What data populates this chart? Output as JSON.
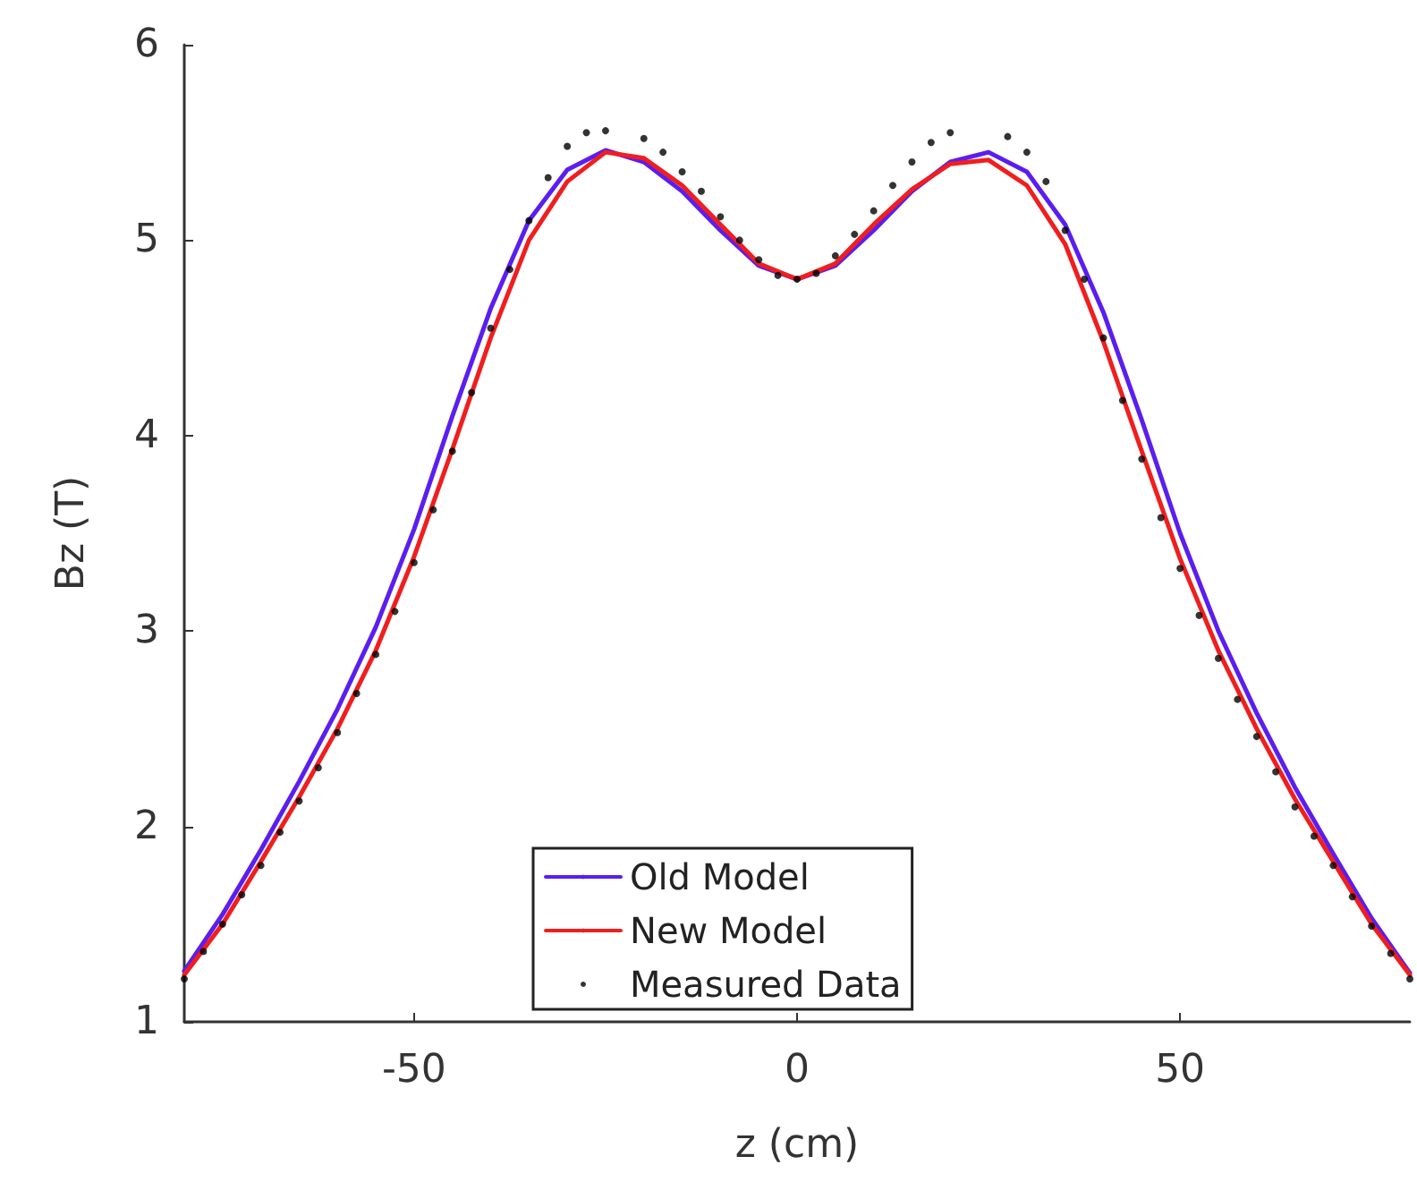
{
  "chart_data": {
    "type": "line",
    "xlabel": "z (cm)",
    "ylabel": "Bz (T)",
    "xlim": [
      -80,
      80
    ],
    "xticks": [
      -50,
      0,
      50
    ],
    "ylim": [
      1,
      6
    ],
    "yticks": [
      1,
      2,
      3,
      4,
      5,
      6
    ],
    "grid": false,
    "legend": "bottom",
    "series": [
      {
        "name": "Old Model",
        "color": "#5a1ef0",
        "marker": "none",
        "x": [
          -80,
          -75,
          -70,
          -65,
          -60,
          -55,
          -50,
          -45,
          -40,
          -35,
          -30,
          -25,
          -20,
          -15,
          -10,
          -5,
          0,
          5,
          10,
          15,
          20,
          25,
          30,
          35,
          40,
          45,
          50,
          55,
          60,
          65,
          70,
          75,
          80
        ],
        "values": [
          1.26,
          1.55,
          1.88,
          2.23,
          2.6,
          3.02,
          3.52,
          4.1,
          4.65,
          5.1,
          5.36,
          5.46,
          5.4,
          5.25,
          5.05,
          4.87,
          4.8,
          4.87,
          5.05,
          5.25,
          5.4,
          5.45,
          5.35,
          5.08,
          4.63,
          4.08,
          3.5,
          3.0,
          2.58,
          2.2,
          1.86,
          1.53,
          1.25
        ]
      },
      {
        "name": "New Model",
        "color": "#f01e1e",
        "marker": "none",
        "x": [
          -80,
          -75,
          -70,
          -65,
          -60,
          -55,
          -50,
          -45,
          -40,
          -35,
          -30,
          -25,
          -20,
          -15,
          -10,
          -5,
          0,
          5,
          10,
          15,
          20,
          25,
          30,
          35,
          40,
          45,
          50,
          55,
          60,
          65,
          70,
          75,
          80
        ],
        "values": [
          1.24,
          1.5,
          1.82,
          2.15,
          2.5,
          2.9,
          3.38,
          3.93,
          4.5,
          5.0,
          5.3,
          5.45,
          5.42,
          5.28,
          5.08,
          4.88,
          4.8,
          4.88,
          5.08,
          5.26,
          5.39,
          5.41,
          5.28,
          4.98,
          4.48,
          3.92,
          3.37,
          2.9,
          2.5,
          2.14,
          1.82,
          1.5,
          1.24
        ]
      },
      {
        "name": "Measured Data",
        "type": "scatter",
        "color": "#000000",
        "marker": "circle",
        "x": [
          -80,
          -77.5,
          -75,
          -72.5,
          -70,
          -67.5,
          -65,
          -62.5,
          -60,
          -57.5,
          -55,
          -52.5,
          -50,
          -47.5,
          -45,
          -42.5,
          -40,
          -37.5,
          -35,
          -32.5,
          -30,
          -27.5,
          -25,
          -22.5,
          -20,
          -17.5,
          -15,
          -12.5,
          -10,
          -7.5,
          -5,
          -2.5,
          0,
          2.5,
          5,
          7.5,
          10,
          12.5,
          15,
          17.5,
          20,
          22.5,
          25,
          27.5,
          30,
          32.5,
          35,
          37.5,
          40,
          42.5,
          45,
          47.5,
          50,
          52.5,
          55,
          57.5,
          60,
          62.5,
          65,
          67.5,
          70,
          72.5,
          75,
          77.5,
          80
        ],
        "values": [
          1.22,
          1.36,
          1.5,
          1.65,
          1.8,
          1.97,
          2.13,
          2.3,
          2.48,
          2.68,
          2.88,
          3.1,
          3.35,
          3.62,
          3.92,
          4.22,
          4.55,
          4.85,
          5.1,
          5.32,
          5.48,
          5.55,
          5.56,
          null,
          5.52,
          5.45,
          5.35,
          5.25,
          5.12,
          5.0,
          4.9,
          4.82,
          4.8,
          4.83,
          4.92,
          5.03,
          5.15,
          5.28,
          5.4,
          5.5,
          5.55,
          null,
          null,
          5.53,
          5.45,
          5.3,
          5.05,
          4.8,
          4.5,
          4.18,
          3.88,
          3.58,
          3.32,
          3.08,
          2.86,
          2.65,
          2.46,
          2.28,
          2.1,
          1.95,
          1.8,
          1.64,
          1.49,
          1.35,
          1.22
        ]
      }
    ]
  }
}
